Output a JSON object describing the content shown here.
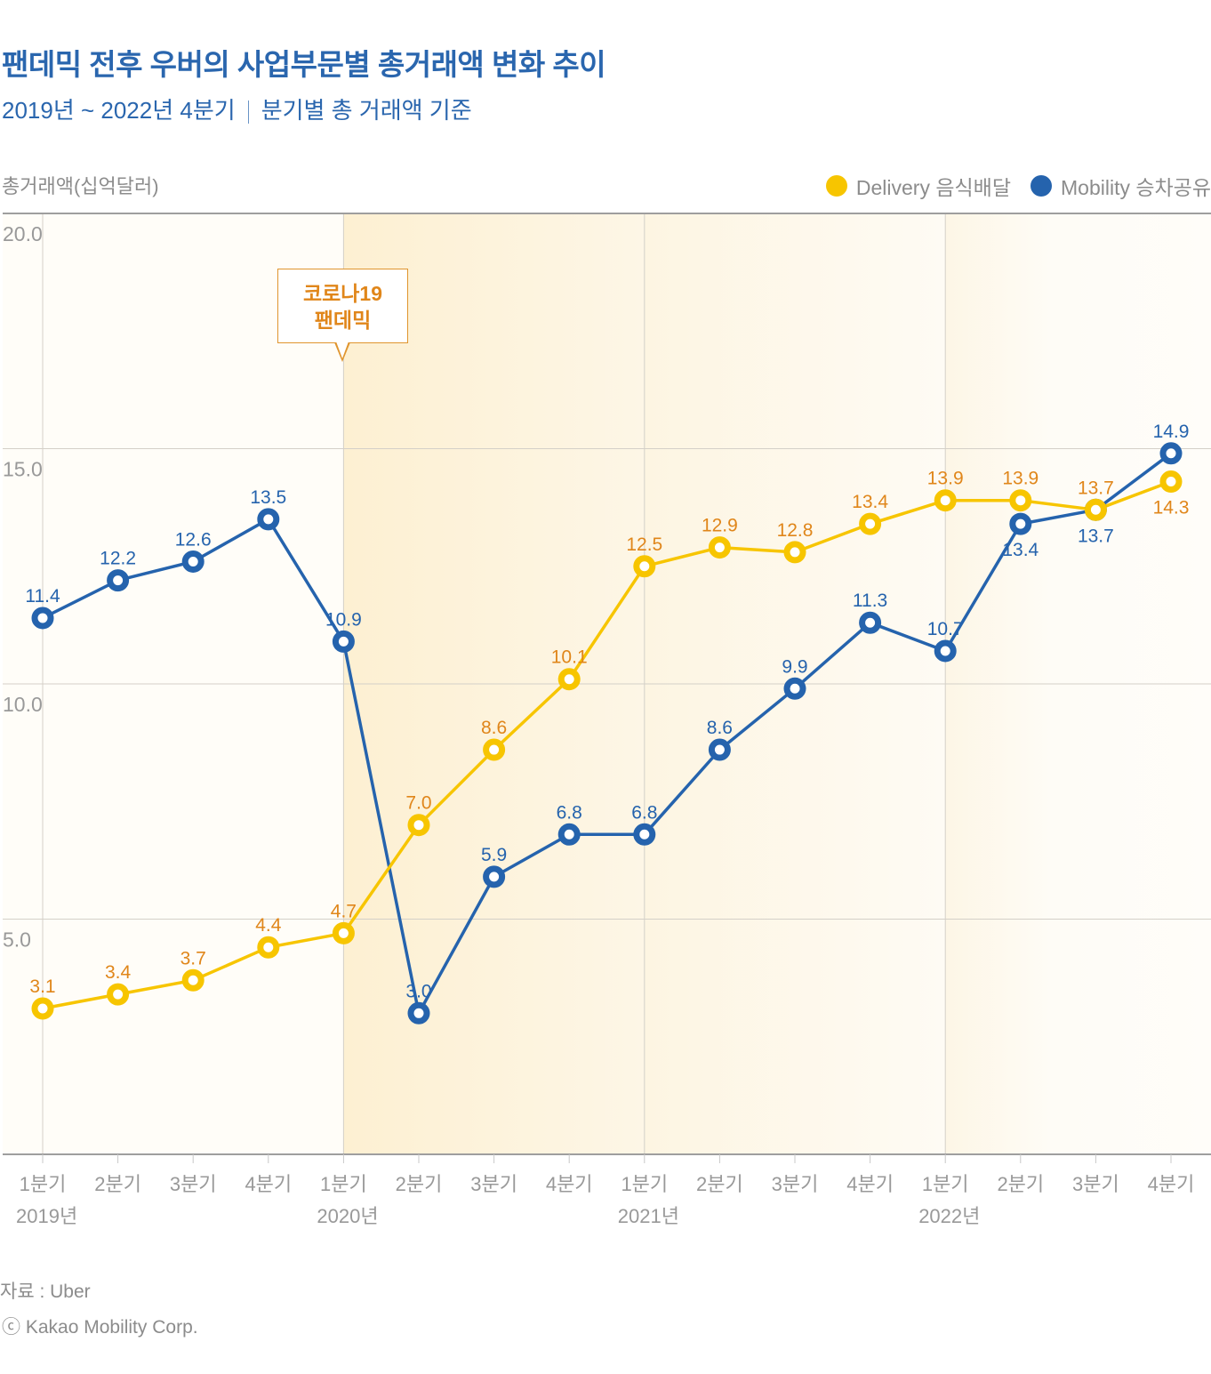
{
  "header": {
    "title": "팬데믹 전후 우버의 사업부문별 총거래액 변화 추이",
    "subtitle_period": "2019년 ~ 2022년 4분기",
    "subtitle_basis": "분기별 총 거래액 기준"
  },
  "footer": {
    "source": "자료 : Uber",
    "copyright": "ⓒ Kakao Mobility Corp."
  },
  "annotation": {
    "line1": "코로나19",
    "line2": "팬데믹",
    "at_category_index": 4
  },
  "colors": {
    "delivery": "#f7c500",
    "delivery_label": "#e0861a",
    "mobility": "#2563ad",
    "band": "#fdf1d6",
    "grid": "#d4d0c8",
    "axis_text": "#999999"
  },
  "chart_data": {
    "type": "line",
    "title": "팬데믹 전후 우버의 사업부문별 총거래액 변화 추이",
    "subtitle": "2019년 ~ 2022년 4분기 | 분기별 총 거래액 기준",
    "xlabel": "",
    "ylabel": "총거래액(십억달러)",
    "ylim": [
      0,
      20
    ],
    "yticks": [
      5.0,
      10.0,
      15.0,
      20.0
    ],
    "ytick_labels": [
      "5.0",
      "10.0",
      "15.0",
      "20.0"
    ],
    "grid": true,
    "legend_position": "top-right",
    "categories": [
      "1분기",
      "2분기",
      "3분기",
      "4분기",
      "1분기",
      "2분기",
      "3분기",
      "4분기",
      "1분기",
      "2분기",
      "3분기",
      "4분기",
      "1분기",
      "2분기",
      "3분기",
      "4분기"
    ],
    "year_groups": [
      {
        "label": "2019년",
        "start_index": 0
      },
      {
        "label": "2020년",
        "start_index": 4
      },
      {
        "label": "2021년",
        "start_index": 8
      },
      {
        "label": "2022년",
        "start_index": 12
      }
    ],
    "series": [
      {
        "name": "Delivery 음식배달",
        "key": "delivery",
        "values": [
          3.1,
          3.4,
          3.7,
          4.4,
          4.7,
          7.0,
          8.6,
          10.1,
          12.5,
          12.9,
          12.8,
          13.4,
          13.9,
          13.9,
          13.7,
          14.3
        ],
        "labels": [
          "3.1",
          "3.4",
          "3.7",
          "4.4",
          "4.7",
          "7.0",
          "8.6",
          "10.1",
          "12.5",
          "12.9",
          "12.8",
          "13.4",
          "13.9",
          "13.9",
          "13.7",
          "14.3"
        ],
        "label_pos": [
          "above",
          "above",
          "above",
          "above",
          "above",
          "above",
          "above",
          "above",
          "above",
          "above",
          "above",
          "above",
          "above",
          "above",
          "above",
          "below"
        ]
      },
      {
        "name": "Mobility 승차공유",
        "key": "mobility",
        "values": [
          11.4,
          12.2,
          12.6,
          13.5,
          10.9,
          3.0,
          5.9,
          6.8,
          6.8,
          8.6,
          9.9,
          11.3,
          10.7,
          13.4,
          13.7,
          14.9
        ],
        "labels": [
          "11.4",
          "12.2",
          "12.6",
          "13.5",
          "10.9",
          "3.0",
          "5.9",
          "6.8",
          "6.8",
          "8.6",
          "9.9",
          "11.3",
          "10.7",
          "13.4",
          "13.7",
          "14.9"
        ],
        "label_pos": [
          "above",
          "above",
          "above",
          "above",
          "above",
          "above",
          "above",
          "above",
          "above",
          "above",
          "above",
          "above",
          "above",
          "below",
          "below",
          "above"
        ]
      }
    ]
  }
}
